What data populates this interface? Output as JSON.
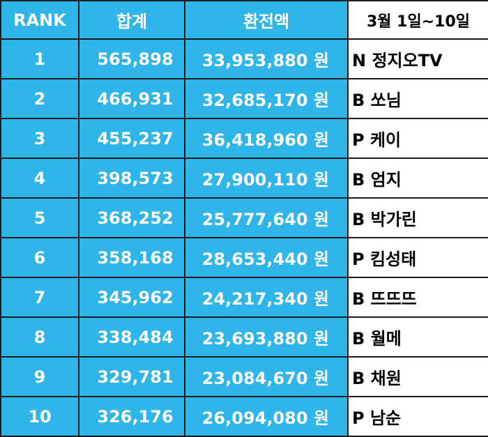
{
  "colors": {
    "header_bg": "#2eb6ea",
    "cell_bg": "#2eb6ea",
    "name_bg": "#ffffff",
    "border": "#1a1a1a"
  },
  "header": {
    "rank": "RANK",
    "total": "합계",
    "amount": "환전액",
    "period": "3월 1일~10일"
  },
  "rows": [
    {
      "rank": "1",
      "total": "565,898",
      "amount": "33,953,880 원",
      "name": "N 정지오TV"
    },
    {
      "rank": "2",
      "total": "466,931",
      "amount": "32,685,170 원",
      "name": "B 쏘님"
    },
    {
      "rank": "3",
      "total": "455,237",
      "amount": "36,418,960 원",
      "name": "P 케이"
    },
    {
      "rank": "4",
      "total": "398,573",
      "amount": "27,900,110 원",
      "name": "B 엄지"
    },
    {
      "rank": "5",
      "total": "368,252",
      "amount": "25,777,640 원",
      "name": "B 박가린"
    },
    {
      "rank": "6",
      "total": "358,168",
      "amount": "28,653,440 원",
      "name": "P 킴성태"
    },
    {
      "rank": "7",
      "total": "345,962",
      "amount": "24,217,340 원",
      "name": "B 뜨뜨뜨"
    },
    {
      "rank": "8",
      "total": "338,484",
      "amount": "23,693,880 원",
      "name": "B 월메"
    },
    {
      "rank": "9",
      "total": "329,781",
      "amount": "23,084,670 원",
      "name": "B 채원"
    },
    {
      "rank": "10",
      "total": "326,176",
      "amount": "26,094,080 원",
      "name": "P 남순"
    }
  ]
}
